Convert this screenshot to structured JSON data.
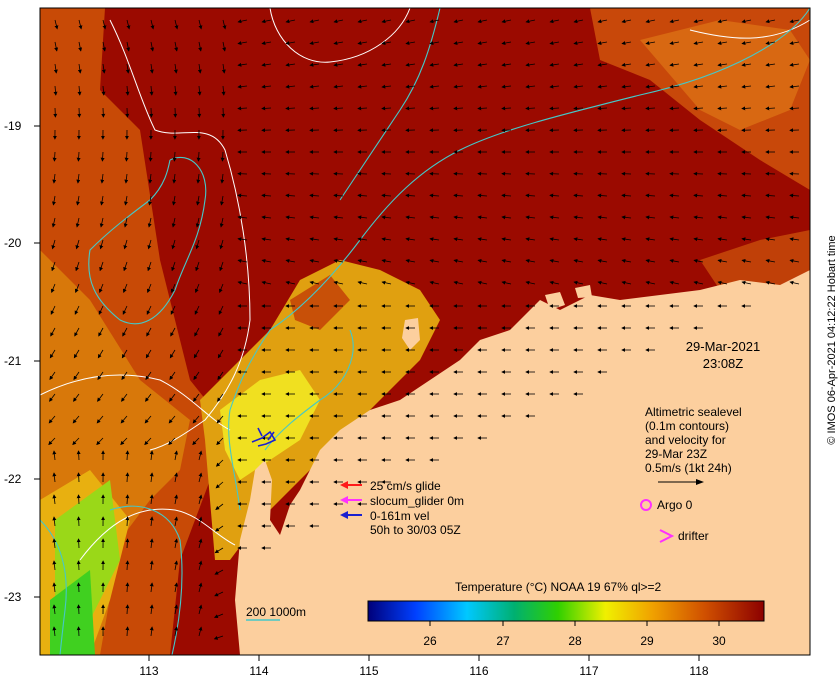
{
  "date_line1": "29-Mar-2021",
  "date_line2": "23:08Z",
  "info": {
    "line1": "Altimetric sealevel",
    "line2": "(0.1m contours)",
    "line3": "and velocity for",
    "line4": "29-Mar 23Z",
    "line5": "0.5m/s (1kt 24h)"
  },
  "legend": {
    "glide": "25 cm/s glide",
    "slocum": "slocum_glider 0m",
    "vel": "0-161m vel",
    "hours": "50h to 30/03 05Z",
    "argo": "Argo 0",
    "drifter": "drifter",
    "depth": "200  1000m"
  },
  "colorbar": {
    "title": "Temperature (°C) NOAA 19 67% ql>=2",
    "ticks": [
      "26",
      "27",
      "28",
      "29",
      "30"
    ]
  },
  "axes": {
    "x_ticks": [
      "113",
      "114",
      "115",
      "116",
      "117",
      "118"
    ],
    "y_ticks": [
      "-19",
      "-20",
      "-21",
      "-22",
      "-23"
    ]
  },
  "credit": "© IMOS 06-Apr-2021 04:12:22 Hobart time",
  "colors": {
    "land": "#fccf9e",
    "sea_hot": "#9b0a00",
    "contour": "#ffffff",
    "isobath": "#45c8c8"
  }
}
